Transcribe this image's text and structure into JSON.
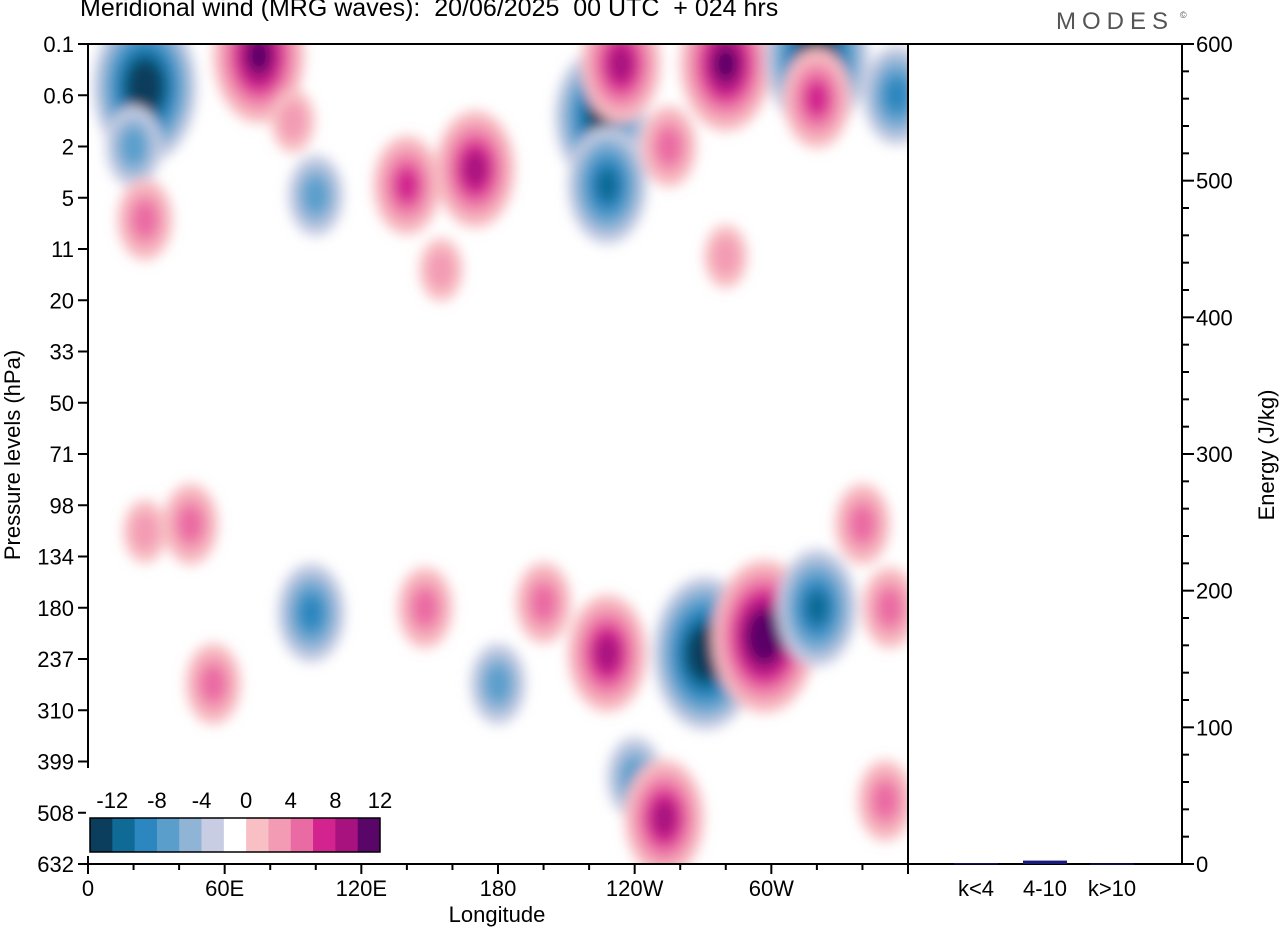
{
  "title": "Meridional wind (MRG waves):  20/06/2025  00 UTC  + 024 hrs",
  "brand": "MODES",
  "brand_mark": "©",
  "chart_data": [
    {
      "type": "heatmap",
      "title": "Meridional wind (MRG waves):  20/06/2025  00 UTC  + 024 hrs",
      "xlabel": "Longitude",
      "ylabel": "Pressure levels (hPa)",
      "x_ticks": [
        "0",
        "60E",
        "120E",
        "180",
        "120W",
        "60W"
      ],
      "x_tick_degrees": [
        0,
        60,
        120,
        180,
        240,
        300
      ],
      "xlim": [
        0,
        360
      ],
      "y_ticks": [
        "0.1",
        "0.6",
        "2",
        "5",
        "11",
        "20",
        "33",
        "50",
        "71",
        "98",
        "134",
        "180",
        "237",
        "310",
        "399",
        "508",
        "632"
      ],
      "colorbar": {
        "labels": [
          "-12",
          "-8",
          "-4",
          "0",
          "4",
          "8",
          "12"
        ],
        "levels": [
          -14,
          -12,
          -10,
          -8,
          -6,
          -4,
          -2,
          2,
          4,
          6,
          8,
          10,
          12,
          14
        ],
        "colors": [
          "#0b3d5c",
          "#0f6a96",
          "#2c86bf",
          "#5a9fcc",
          "#8fb4d6",
          "#c8cde3",
          "#ffffff",
          "#f8c0c4",
          "#f39bb4",
          "#ea6aa3",
          "#d2238f",
          "#a8127f",
          "#5a0668"
        ]
      },
      "features": [
        {
          "lon": 25,
          "lev": 0.45,
          "value": -13
        },
        {
          "lon": 75,
          "lev": 0.15,
          "value": 12
        },
        {
          "lon": 20,
          "lev": 2,
          "value": -6
        },
        {
          "lon": 90,
          "lev": 1.1,
          "value": 4
        },
        {
          "lon": 25,
          "lev": 7,
          "value": 6
        },
        {
          "lon": 100,
          "lev": 4.8,
          "value": -6
        },
        {
          "lon": 140,
          "lev": 4,
          "value": 8
        },
        {
          "lon": 170,
          "lev": 3,
          "value": 10
        },
        {
          "lon": 155,
          "lev": 14,
          "value": 4
        },
        {
          "lon": 225,
          "lev": 1,
          "value": -12
        },
        {
          "lon": 228,
          "lev": 4,
          "value": -10
        },
        {
          "lon": 234,
          "lev": 0.2,
          "value": 10
        },
        {
          "lon": 280,
          "lev": 0.2,
          "value": 12
        },
        {
          "lon": 320,
          "lev": 0.15,
          "value": -13
        },
        {
          "lon": 320,
          "lev": 0.65,
          "value": 8
        },
        {
          "lon": 355,
          "lev": 0.6,
          "value": -8
        },
        {
          "lon": 255,
          "lev": 2,
          "value": 6
        },
        {
          "lon": 280,
          "lev": 12,
          "value": 4
        },
        {
          "lon": 45,
          "lev": 110,
          "value": 6
        },
        {
          "lon": 25,
          "lev": 115,
          "value": 4
        },
        {
          "lon": 55,
          "lev": 270,
          "value": 6
        },
        {
          "lon": 98,
          "lev": 185,
          "value": -7
        },
        {
          "lon": 148,
          "lev": 180,
          "value": 5
        },
        {
          "lon": 200,
          "lev": 175,
          "value": 6
        },
        {
          "lon": 228,
          "lev": 230,
          "value": 9
        },
        {
          "lon": 271,
          "lev": 230,
          "value": -14
        },
        {
          "lon": 297,
          "lev": 210,
          "value": 14
        },
        {
          "lon": 320,
          "lev": 180,
          "value": -9
        },
        {
          "lon": 340,
          "lev": 110,
          "value": 6
        },
        {
          "lon": 352,
          "lev": 180,
          "value": 6
        },
        {
          "lon": 180,
          "lev": 270,
          "value": -5
        },
        {
          "lon": 240,
          "lev": 430,
          "value": -6
        },
        {
          "lon": 253,
          "lev": 520,
          "value": 9
        },
        {
          "lon": 350,
          "lev": 480,
          "value": 6
        }
      ]
    },
    {
      "type": "bar",
      "ylabel": "Energy (J/kg)",
      "ylim": [
        0,
        600
      ],
      "y_ticks": [
        "0",
        "100",
        "200",
        "300",
        "400",
        "500",
        "600"
      ],
      "categories": [
        "k<4",
        "4-10",
        "k>10"
      ],
      "values": [
        0.5,
        2.5,
        0.3
      ],
      "bar_color": "#1a1a7a"
    }
  ]
}
